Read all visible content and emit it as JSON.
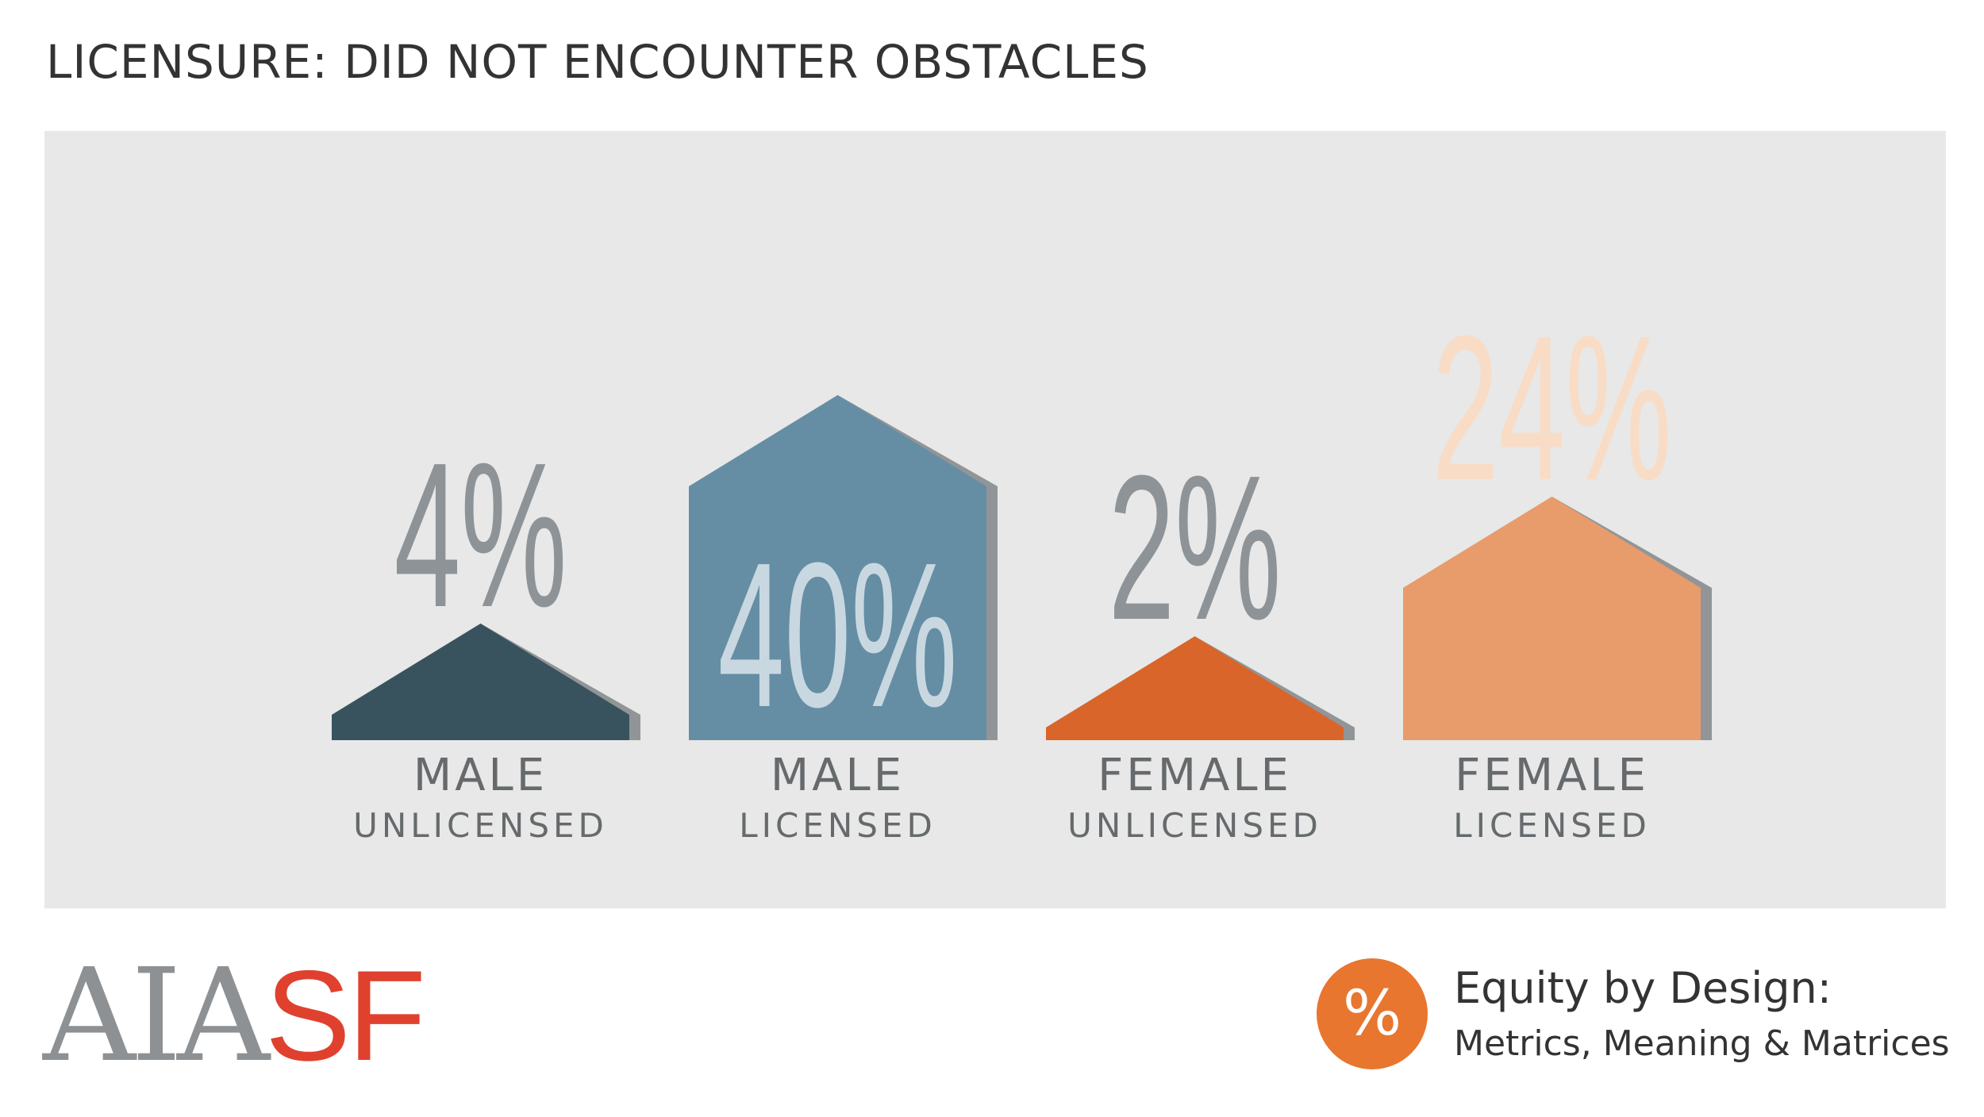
{
  "title": "LICENSURE: DID NOT ENCOUNTER OBSTACLES",
  "chart_data": {
    "type": "bar",
    "categories": [
      "MALE UNLICENSED",
      "MALE LICENSED",
      "FEMALE UNLICENSED",
      "FEMALE LICENSED"
    ],
    "values": [
      4,
      40,
      2,
      24
    ],
    "value_labels": [
      "4%",
      "40%",
      "2%",
      "24%"
    ],
    "label_main": [
      "MALE",
      "MALE",
      "FEMALE",
      "FEMALE"
    ],
    "label_sub": [
      "UNLICENSED",
      "LICENSED",
      "UNLICENSED",
      "LICENSED"
    ],
    "colors": [
      "#38535e",
      "#658ea5",
      "#d9652a",
      "#e89b6b"
    ],
    "shadow_color": "#919597",
    "value_text_colors": [
      "#8e9397",
      "#c9d8e0",
      "#8e9397",
      "#f9dcc6"
    ],
    "xlabel": "",
    "ylabel": "",
    "grid": false
  },
  "footer": {
    "logo_aia": "AIA",
    "logo_sf": "SF",
    "badge_symbol": "%",
    "title": "Equity by Design:",
    "subtitle": "Metrics, Meaning & Matrices"
  }
}
